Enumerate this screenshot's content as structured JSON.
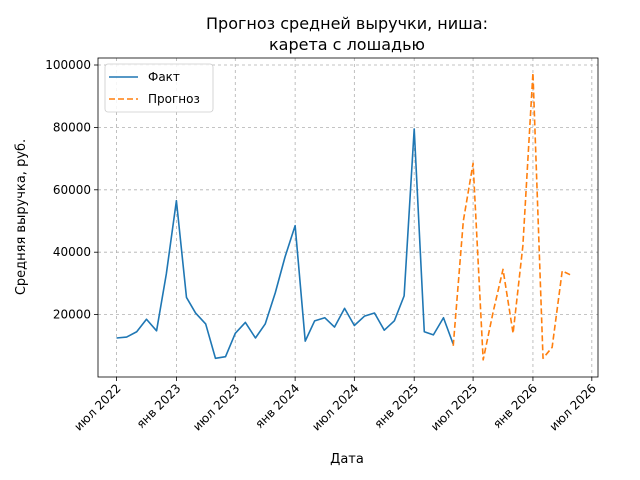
{
  "chart_data": {
    "type": "line",
    "title": "Прогноз средней выручки, ниша:\nкарета с лошадью",
    "xlabel": "Дата",
    "ylabel": "Средняя выручка, руб.",
    "ylim": [
      0,
      100000
    ],
    "xlim": [
      "2022-05-05",
      "2026-07-20"
    ],
    "grid": true,
    "grid_style": "dashed",
    "legend_position": "top-left",
    "y_ticks": [
      20000,
      40000,
      60000,
      80000,
      100000
    ],
    "x_ticks": [
      {
        "date": "2022-07-01",
        "label": "июл 2022"
      },
      {
        "date": "2023-01-01",
        "label": "янв 2023"
      },
      {
        "date": "2023-07-01",
        "label": "июл 2023"
      },
      {
        "date": "2024-01-01",
        "label": "янв 2024"
      },
      {
        "date": "2024-07-01",
        "label": "июл 2024"
      },
      {
        "date": "2025-01-01",
        "label": "янв 2025"
      },
      {
        "date": "2025-07-01",
        "label": "июл 2025"
      },
      {
        "date": "2026-01-01",
        "label": "янв 2026"
      },
      {
        "date": "2026-07-01",
        "label": "июл 2026"
      }
    ],
    "series": [
      {
        "name": "Факт",
        "color": "#1f77b4",
        "style": "solid",
        "points": [
          {
            "x": "2022-07-01",
            "y": 12500
          },
          {
            "x": "2022-08-01",
            "y": 12800
          },
          {
            "x": "2022-09-01",
            "y": 14500
          },
          {
            "x": "2022-10-01",
            "y": 18500
          },
          {
            "x": "2022-11-01",
            "y": 14800
          },
          {
            "x": "2022-12-01",
            "y": 33000
          },
          {
            "x": "2023-01-01",
            "y": 56500
          },
          {
            "x": "2023-02-01",
            "y": 25500
          },
          {
            "x": "2023-03-01",
            "y": 20500
          },
          {
            "x": "2023-04-01",
            "y": 17000
          },
          {
            "x": "2023-05-01",
            "y": 6000
          },
          {
            "x": "2023-06-01",
            "y": 6500
          },
          {
            "x": "2023-07-01",
            "y": 14000
          },
          {
            "x": "2023-08-01",
            "y": 17500
          },
          {
            "x": "2023-09-01",
            "y": 12500
          },
          {
            "x": "2023-10-01",
            "y": 17000
          },
          {
            "x": "2023-11-01",
            "y": 27000
          },
          {
            "x": "2023-12-01",
            "y": 38500
          },
          {
            "x": "2024-01-01",
            "y": 48500
          },
          {
            "x": "2024-02-01",
            "y": 11500
          },
          {
            "x": "2024-03-01",
            "y": 18000
          },
          {
            "x": "2024-04-01",
            "y": 19000
          },
          {
            "x": "2024-05-01",
            "y": 16000
          },
          {
            "x": "2024-06-01",
            "y": 22000
          },
          {
            "x": "2024-07-01",
            "y": 16500
          },
          {
            "x": "2024-08-01",
            "y": 19500
          },
          {
            "x": "2024-09-01",
            "y": 20500
          },
          {
            "x": "2024-10-01",
            "y": 15000
          },
          {
            "x": "2024-11-01",
            "y": 18000
          },
          {
            "x": "2024-12-01",
            "y": 26000
          },
          {
            "x": "2025-01-01",
            "y": 79500
          },
          {
            "x": "2025-02-01",
            "y": 14500
          },
          {
            "x": "2025-03-01",
            "y": 13500
          },
          {
            "x": "2025-04-01",
            "y": 19000
          },
          {
            "x": "2025-05-01",
            "y": 10500
          }
        ]
      },
      {
        "name": "Прогноз",
        "color": "#ff7f0e",
        "style": "dashed",
        "points": [
          {
            "x": "2025-05-01",
            "y": 10000
          },
          {
            "x": "2025-06-01",
            "y": 50000
          },
          {
            "x": "2025-07-01",
            "y": 68500
          },
          {
            "x": "2025-08-01",
            "y": 5500
          },
          {
            "x": "2025-09-01",
            "y": 21000
          },
          {
            "x": "2025-10-01",
            "y": 34500
          },
          {
            "x": "2025-11-01",
            "y": 14000
          },
          {
            "x": "2025-12-01",
            "y": 42000
          },
          {
            "x": "2026-01-01",
            "y": 97500
          },
          {
            "x": "2026-02-01",
            "y": 6000
          },
          {
            "x": "2026-03-01",
            "y": 9500
          },
          {
            "x": "2026-04-01",
            "y": 34000
          },
          {
            "x": "2026-05-01",
            "y": 32500
          }
        ]
      }
    ]
  }
}
